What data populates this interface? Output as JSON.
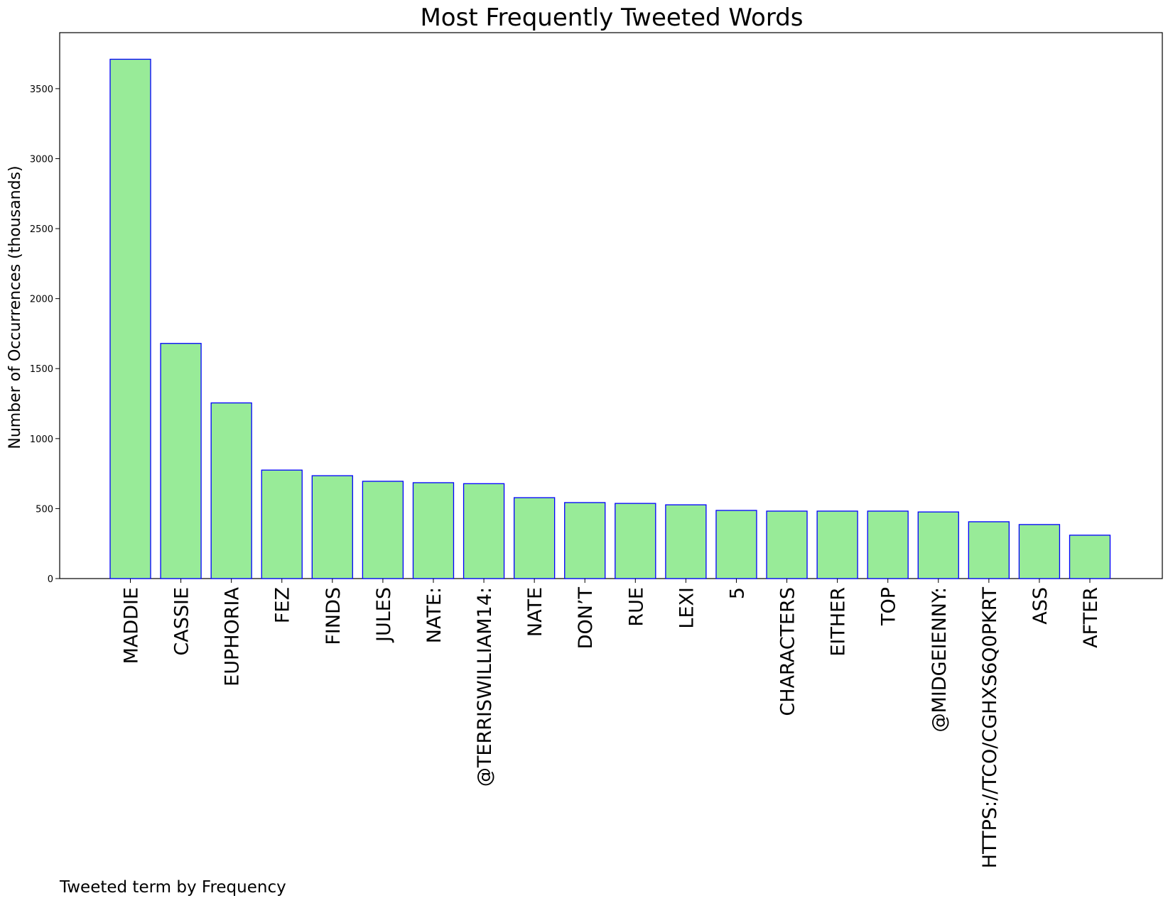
{
  "chart_data": {
    "type": "bar",
    "title": "Most Frequently Tweeted Words",
    "xlabel": "Tweeted term by Frequency",
    "ylabel": "Number of Occurrences (thousands)",
    "categories": [
      "MADDIE",
      "CASSIE",
      "EUPHORIA",
      "FEZ",
      "FINDS",
      "JULES",
      "NATE:",
      "@TERRISWILLIAM14:",
      "NATE",
      "DON’T",
      "RUE",
      "LEXI",
      "5",
      "CHARACTERS",
      "EITHER",
      "TOP",
      "@MIDGEIENNY:",
      "HTTPS://TCO/CGHXS6Q0PKRT",
      "ASS",
      "AFTER"
    ],
    "values": [
      3710,
      1680,
      1255,
      775,
      735,
      695,
      685,
      678,
      578,
      543,
      537,
      527,
      487,
      482,
      482,
      482,
      476,
      406,
      386,
      310
    ],
    "ylim": [
      0,
      3900
    ],
    "yticks": [
      0,
      500,
      1000,
      1500,
      2000,
      2500,
      3000,
      3500
    ],
    "bar_color": "#98eb98",
    "edge_color": "#0000ff",
    "grid": false,
    "legend": "none"
  }
}
